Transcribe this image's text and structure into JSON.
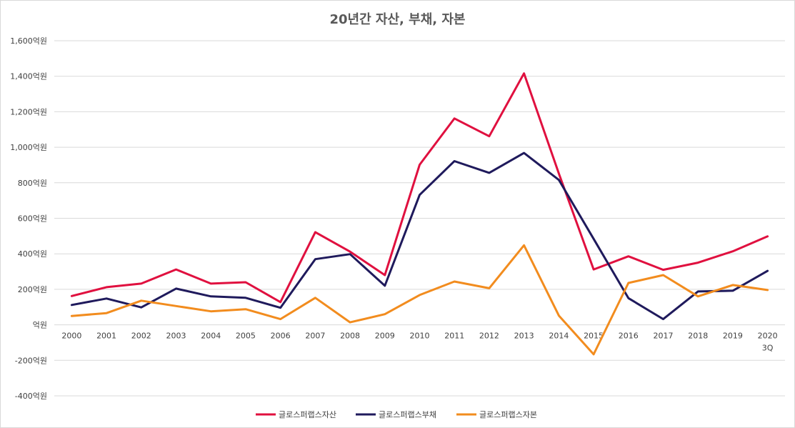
{
  "chart_data": {
    "type": "line",
    "title": "20년간 자산, 부채, 자본",
    "xlabel": "",
    "ylabel": "",
    "categories": [
      "2000",
      "2001",
      "2002",
      "2003",
      "2004",
      "2005",
      "2006",
      "2007",
      "2008",
      "2009",
      "2010",
      "2011",
      "2012",
      "2013",
      "2014",
      "2015",
      "2016",
      "2017",
      "2018",
      "2019",
      "2020\n3Q"
    ],
    "category_lines": [
      [
        "2000"
      ],
      [
        "2001"
      ],
      [
        "2002"
      ],
      [
        "2003"
      ],
      [
        "2004"
      ],
      [
        "2005"
      ],
      [
        "2006"
      ],
      [
        "2007"
      ],
      [
        "2008"
      ],
      [
        "2009"
      ],
      [
        "2010"
      ],
      [
        "2011"
      ],
      [
        "2012"
      ],
      [
        "2013"
      ],
      [
        "2014"
      ],
      [
        "2015"
      ],
      [
        "2016"
      ],
      [
        "2017"
      ],
      [
        "2018"
      ],
      [
        "2019"
      ],
      [
        "2020",
        "3Q"
      ]
    ],
    "ylim": [
      -400,
      1600
    ],
    "yticks": [
      1600,
      1400,
      1200,
      1000,
      800,
      600,
      400,
      200,
      0,
      -200,
      -400
    ],
    "ytick_labels": [
      "1,600억원",
      "1,400억원",
      "1,200억원",
      "1,000억원",
      "800억원",
      "600억원",
      "400억원",
      "200억원",
      "억원",
      "-200억원",
      "-400억원"
    ],
    "grid": true,
    "legend_position": "bottom",
    "series": [
      {
        "name": "글로스퍼랩스자산",
        "color": "#e0103f",
        "values": [
          162,
          212,
          232,
          312,
          232,
          240,
          128,
          522,
          412,
          280,
          902,
          1162,
          1062,
          1416,
          852,
          312,
          386,
          310,
          350,
          414,
          498
        ]
      },
      {
        "name": "글로스퍼랩스부채",
        "color": "#1f1a5c",
        "values": [
          112,
          148,
          98,
          204,
          160,
          152,
          96,
          370,
          398,
          220,
          732,
          922,
          856,
          968,
          816,
          484,
          150,
          32,
          188,
          192,
          304
        ]
      },
      {
        "name": "글로스퍼랩스자본",
        "color": "#f28c1e",
        "values": [
          50,
          66,
          136,
          106,
          76,
          88,
          32,
          152,
          14,
          60,
          168,
          244,
          206,
          448,
          52,
          -166,
          236,
          280,
          160,
          224,
          196
        ]
      }
    ]
  }
}
